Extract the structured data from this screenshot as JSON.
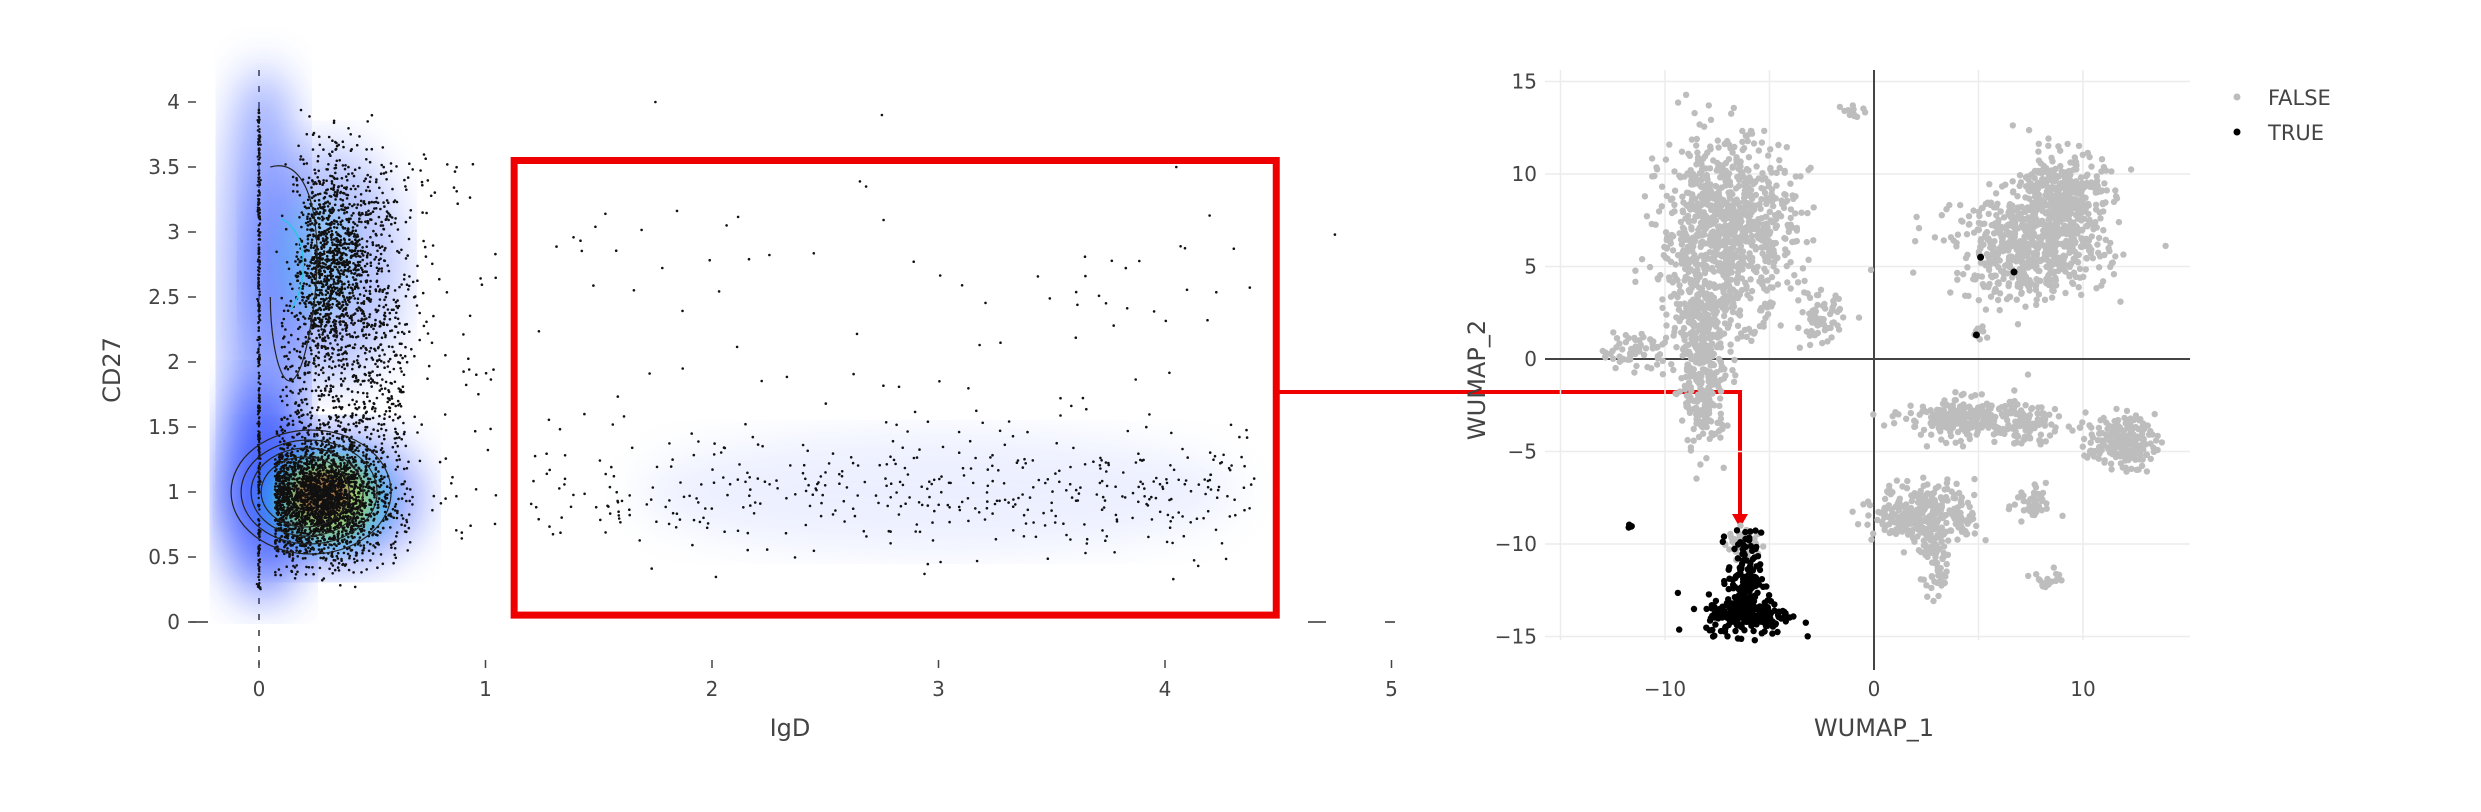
{
  "chart_data": [
    {
      "type": "scatter",
      "subtype": "density scatter with contours and gate",
      "xlabel": "IgD",
      "ylabel": "CD27",
      "xlim": [
        -0.2,
        5
      ],
      "ylim": [
        -0.2,
        4.1
      ],
      "x_ticks": [
        "0",
        "1",
        "2",
        "3",
        "4",
        "5"
      ],
      "y_ticks": [
        "0",
        "0.5",
        "1",
        "1.5",
        "2",
        "2.5",
        "3",
        "3.5",
        "4"
      ],
      "gate": {
        "x": [
          1.1,
          4.5
        ],
        "y": [
          0.03,
          3.55
        ],
        "color": "#ee0000"
      },
      "populations": [
        {
          "name": "IgD-negative line",
          "x_center": 0.0,
          "y_range": [
            0.25,
            3.95
          ]
        },
        {
          "name": "CD27 high cluster",
          "x_center": 0.25,
          "y_center": 2.75,
          "approx_points": 1400
        },
        {
          "name": "CD27 low cluster",
          "x_center": 0.3,
          "y_center": 0.95,
          "approx_points": 2600
        },
        {
          "name": "gated IgD+ cells",
          "x_range": [
            1.2,
            4.4
          ],
          "y_center": 1.0,
          "approx_points": 520
        }
      ],
      "density_colors": [
        "#1f3cff",
        "#2ec4e6",
        "#d6e600",
        "#c0392b"
      ]
    },
    {
      "type": "scatter",
      "subtype": "UMAP embedding",
      "xlabel": "WUMAP_1",
      "ylabel": "WUMAP_2",
      "xlim": [
        -16,
        15
      ],
      "ylim": [
        -17,
        15.5
      ],
      "x_ticks": [
        "−10",
        "0",
        "10"
      ],
      "y_ticks": [
        "15",
        "10",
        "5",
        "0",
        "−5",
        "−10",
        "−15"
      ],
      "series": [
        {
          "name": "FALSE",
          "color": "#bdbdbd"
        },
        {
          "name": "TRUE",
          "color": "#000000"
        }
      ],
      "clusters": [
        {
          "label": "FALSE",
          "x": -7,
          "y": 6.5
        },
        {
          "label": "FALSE",
          "x": -8.5,
          "y": -1.5
        },
        {
          "label": "FALSE",
          "x": 7,
          "y": 5.5
        },
        {
          "label": "FALSE",
          "x": 3.5,
          "y": -9
        },
        {
          "label": "FALSE",
          "x": 6.5,
          "y": -3
        },
        {
          "label": "FALSE",
          "x": 11.5,
          "y": -4.5
        },
        {
          "label": "TRUE",
          "x": -6.2,
          "y": -13
        }
      ],
      "legend_position": "top-right"
    }
  ]
}
